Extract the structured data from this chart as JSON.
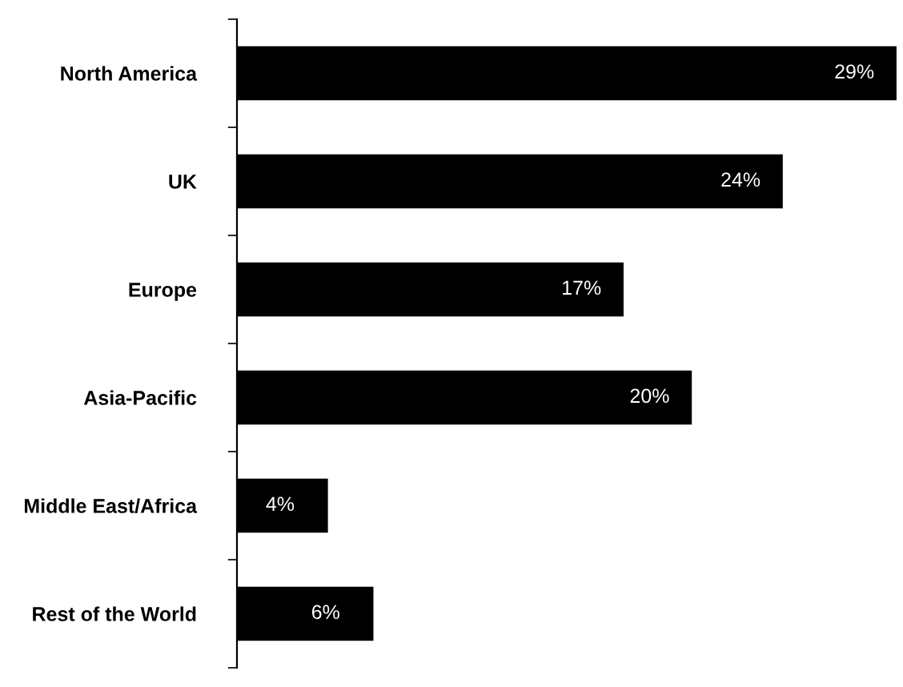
{
  "chart_data": {
    "type": "bar",
    "orientation": "horizontal",
    "categories": [
      "North America",
      "UK",
      "Europe",
      "Asia-Pacific",
      "Middle East/Africa",
      "Rest of the World"
    ],
    "values": [
      29,
      24,
      17,
      20,
      4,
      6
    ],
    "value_labels": [
      "29%",
      "24%",
      "17%",
      "20%",
      "4%",
      "6%"
    ],
    "color": "#000000",
    "grid": false,
    "legend": false,
    "tick_labels": "y"
  }
}
